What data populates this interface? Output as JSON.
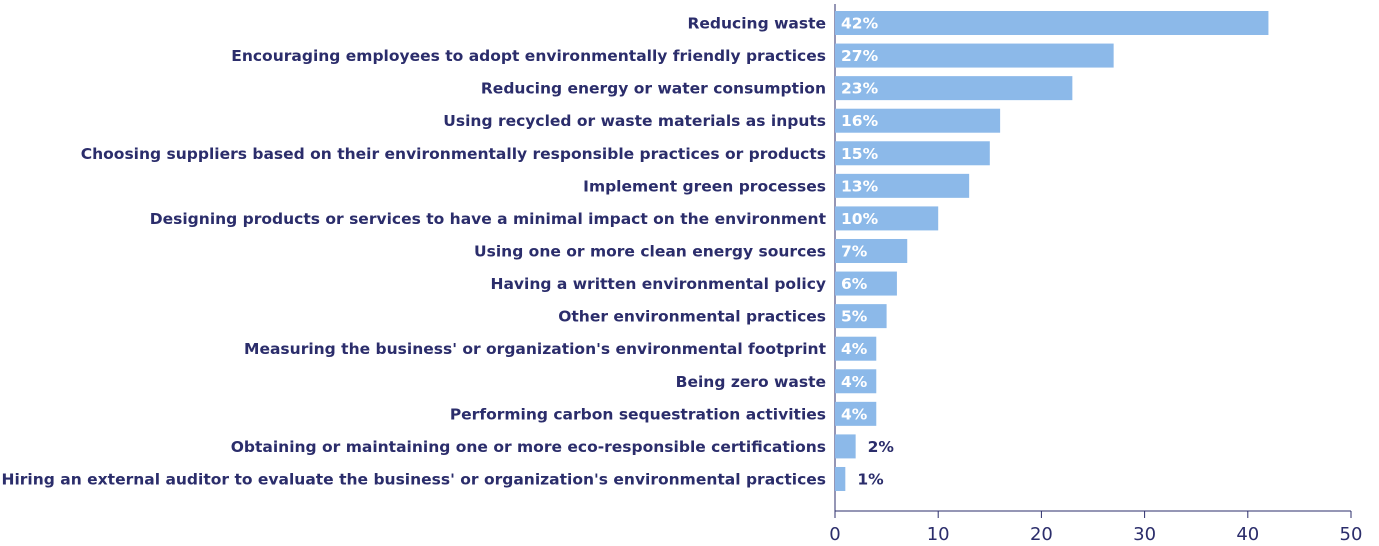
{
  "chart_data": {
    "type": "bar",
    "orientation": "horizontal",
    "categories": [
      "Reducing waste",
      "Encouraging employees to adopt environmentally friendly practices",
      "Reducing energy or water consumption",
      "Using recycled or waste materials as inputs",
      "Choosing suppliers based on their environmentally responsible practices or products",
      "Implement green processes",
      "Designing products or services to have a minimal impact on the environment",
      "Using one or more clean energy sources",
      "Having a written environmental policy",
      "Other environmental practices",
      "Measuring the business' or organization's environmental footprint",
      "Being zero waste",
      "Performing carbon sequestration activities",
      "Obtaining or maintaining one or more eco-responsible certifications",
      "Hiring an external auditor to evaluate the business' or organization's environmental practices"
    ],
    "values": [
      42,
      27,
      23,
      16,
      15,
      13,
      10,
      7,
      6,
      5,
      4,
      4,
      4,
      2,
      1
    ],
    "value_labels": [
      "42%",
      "27%",
      "23%",
      "16%",
      "15%",
      "13%",
      "10%",
      "7%",
      "6%",
      "5%",
      "4%",
      "4%",
      "4%",
      "2%",
      "1%"
    ],
    "color": "#8cb9e9",
    "xlim": [
      0,
      50
    ],
    "xticks": [
      0,
      10,
      20,
      30,
      40,
      50
    ]
  }
}
